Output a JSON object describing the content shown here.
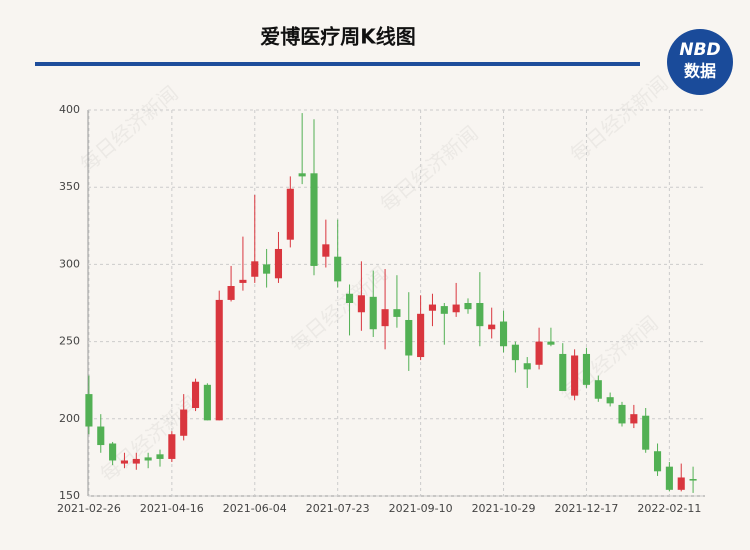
{
  "chart_data": {
    "type": "candlestick",
    "title": "爱博医疗周K线图",
    "logo": {
      "top": "NBD",
      "bottom": "数据"
    },
    "watermark": "每日经济新闻",
    "categories": [
      "2021-02-26",
      null,
      null,
      null,
      null,
      null,
      null,
      "2021-04-16",
      null,
      null,
      null,
      null,
      null,
      null,
      "2021-06-04",
      null,
      null,
      null,
      null,
      null,
      null,
      "2021-07-23",
      null,
      null,
      null,
      null,
      null,
      null,
      "2021-09-10",
      null,
      null,
      null,
      null,
      null,
      null,
      "2021-10-29",
      null,
      null,
      null,
      null,
      null,
      null,
      "2021-12-17",
      null,
      null,
      null,
      null,
      null,
      null,
      "2022-02-11",
      null,
      null
    ],
    "open": [
      216,
      195,
      184,
      171,
      171,
      175,
      177,
      174,
      189,
      207,
      222,
      199,
      277,
      288,
      292,
      300,
      291,
      316,
      359,
      359,
      305,
      305,
      281,
      269,
      279,
      260,
      271,
      264,
      240,
      270,
      273,
      269,
      275,
      275,
      258,
      263,
      248,
      236,
      235,
      250,
      242,
      215,
      242,
      225,
      214,
      209,
      197,
      202,
      179,
      169,
      154,
      161
    ],
    "close": [
      195,
      183,
      173,
      173,
      174,
      173,
      174,
      190,
      206,
      224,
      199,
      277,
      286,
      290,
      302,
      294,
      310,
      349,
      357,
      299,
      313,
      289,
      275,
      280,
      258,
      271,
      266,
      241,
      268,
      274,
      268,
      274,
      271,
      260,
      261,
      247,
      238,
      232,
      250,
      248,
      218,
      241,
      222,
      213,
      210,
      197,
      203,
      180,
      166,
      154,
      162,
      160
    ],
    "high": [
      228,
      203,
      185,
      178,
      178,
      178,
      180,
      192,
      216,
      226,
      223,
      283,
      299,
      318,
      345,
      310,
      321,
      357,
      398,
      394,
      329,
      329,
      287,
      302,
      296,
      297,
      293,
      282,
      280,
      281,
      275,
      288,
      278,
      295,
      272,
      270,
      250,
      240,
      259,
      259,
      249,
      245,
      246,
      228,
      217,
      211,
      209,
      207,
      184,
      172,
      171,
      169
    ],
    "low": [
      190,
      178,
      170,
      168,
      167,
      168,
      169,
      172,
      186,
      205,
      199,
      199,
      276,
      283,
      288,
      285,
      288,
      311,
      352,
      293,
      298,
      285,
      254,
      257,
      253,
      245,
      259,
      231,
      238,
      260,
      248,
      266,
      268,
      247,
      252,
      243,
      230,
      220,
      232,
      247,
      218,
      212,
      220,
      211,
      208,
      195,
      194,
      178,
      163,
      153,
      153,
      152
    ],
    "up_color": "#d9363e",
    "down_color": "#52b054",
    "ylim": [
      150,
      400
    ],
    "yticks": [
      150,
      200,
      250,
      300,
      350,
      400
    ],
    "grid": true
  }
}
